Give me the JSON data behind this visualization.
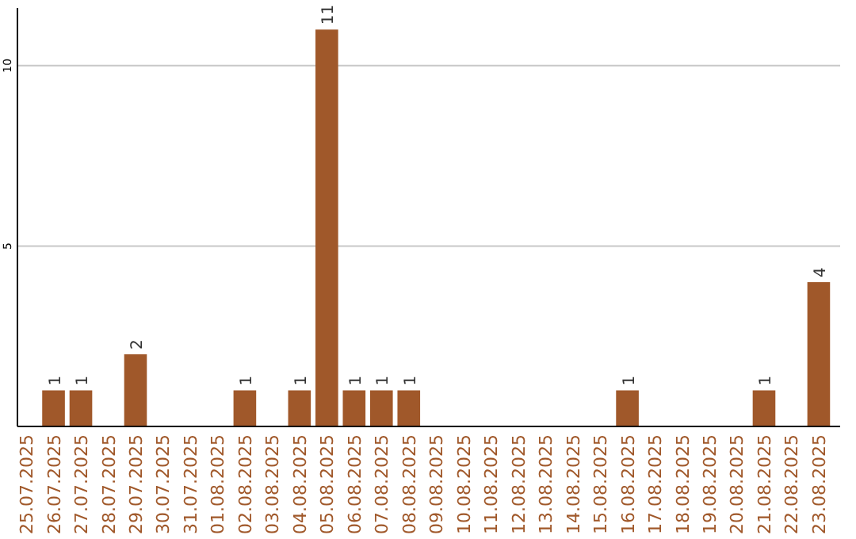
{
  "chart_data": {
    "type": "bar",
    "categories": [
      "25.07.2025",
      "26.07.2025",
      "27.07.2025",
      "28.07.2025",
      "29.07.2025",
      "30.07.2025",
      "31.07.2025",
      "01.08.2025",
      "02.08.2025",
      "03.08.2025",
      "04.08.2025",
      "05.08.2025",
      "06.08.2025",
      "07.08.2025",
      "08.08.2025",
      "09.08.2025",
      "10.08.2025",
      "11.08.2025",
      "12.08.2025",
      "13.08.2025",
      "14.08.2025",
      "15.08.2025",
      "16.08.2025",
      "17.08.2025",
      "18.08.2025",
      "19.08.2025",
      "20.08.2025",
      "21.08.2025",
      "22.08.2025",
      "23.08.2025"
    ],
    "values": [
      0,
      1,
      1,
      0,
      2,
      0,
      0,
      0,
      1,
      0,
      1,
      11,
      1,
      1,
      1,
      0,
      0,
      0,
      0,
      0,
      0,
      0,
      1,
      0,
      0,
      0,
      0,
      1,
      0,
      4
    ],
    "value_labels": [
      null,
      "1",
      "1",
      null,
      "2",
      null,
      null,
      null,
      "1",
      null,
      "1",
      "11",
      "1",
      "1",
      "1",
      null,
      null,
      null,
      null,
      null,
      null,
      null,
      "1",
      null,
      null,
      null,
      null,
      "1",
      null,
      "4"
    ],
    "color": "#a0582a",
    "ylim": [
      0,
      11.6
    ],
    "yticks": [
      5,
      10
    ],
    "grid": "y"
  }
}
